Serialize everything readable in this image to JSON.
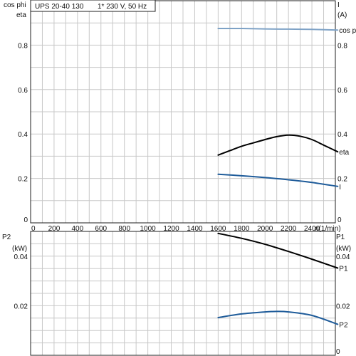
{
  "header": {
    "pump_model": "UPS 20-40 130",
    "supply": "1* 230 V, 50 Hz"
  },
  "chart_data": [
    {
      "type": "line",
      "panel": "upper",
      "y_left_label": "cos phi",
      "y_left_label_2": "eta",
      "y_right_label": "I",
      "y_right_unit": "(A)",
      "x_ticks": [
        "0",
        "200",
        "400",
        "600",
        "800",
        "1000",
        "1200",
        "1400",
        "1600",
        "1800",
        "2000",
        "2200",
        "2400"
      ],
      "x_unit": "n(1/min)",
      "xlim": [
        0,
        2600
      ],
      "ylim": [
        0,
        1.0
      ],
      "y_left_ticks": [
        "0",
        "0.2",
        "0.4",
        "0.6",
        "0.8"
      ],
      "y_right_ticks": [
        "0",
        "0.2",
        "0.4",
        "0.6",
        "0.8"
      ],
      "grid": true,
      "series": [
        {
          "name": "cos phi",
          "color": "#7ea2c6",
          "x": [
            1600,
            1800,
            2000,
            2200,
            2400,
            2620
          ],
          "values": [
            0.875,
            0.875,
            0.873,
            0.872,
            0.871,
            0.868
          ]
        },
        {
          "name": "eta",
          "color": "#000000",
          "x": [
            1600,
            1700,
            1800,
            1900,
            2000,
            2100,
            2200,
            2300,
            2400,
            2500,
            2620
          ],
          "values": [
            0.305,
            0.325,
            0.345,
            0.36,
            0.375,
            0.388,
            0.395,
            0.39,
            0.375,
            0.35,
            0.32
          ]
        },
        {
          "name": "I",
          "color": "#1f5c9a",
          "x": [
            1600,
            1800,
            2000,
            2200,
            2400,
            2620
          ],
          "values": [
            0.219,
            0.212,
            0.204,
            0.194,
            0.182,
            0.164
          ]
        }
      ]
    },
    {
      "type": "line",
      "panel": "lower",
      "y_left_label": "P2",
      "y_left_unit": "(kW)",
      "y_right_label": "P1",
      "y_right_unit": "(kW)",
      "ylim": [
        0,
        0.05
      ],
      "y_left_ticks": [
        "0.02",
        "0.04"
      ],
      "y_right_ticks": [
        "0",
        "0.02",
        "0.04"
      ],
      "grid": true,
      "series": [
        {
          "name": "P1",
          "color": "#000000",
          "x": [
            1600,
            1800,
            2000,
            2200,
            2400,
            2620
          ],
          "values": [
            0.0492,
            0.0472,
            0.0448,
            0.0419,
            0.0388,
            0.0352
          ]
        },
        {
          "name": "P2",
          "color": "#1f5c9a",
          "x": [
            1600,
            1800,
            2000,
            2100,
            2200,
            2400,
            2620
          ],
          "values": [
            0.0152,
            0.0167,
            0.0175,
            0.0177,
            0.0175,
            0.0161,
            0.0125
          ]
        }
      ]
    }
  ]
}
